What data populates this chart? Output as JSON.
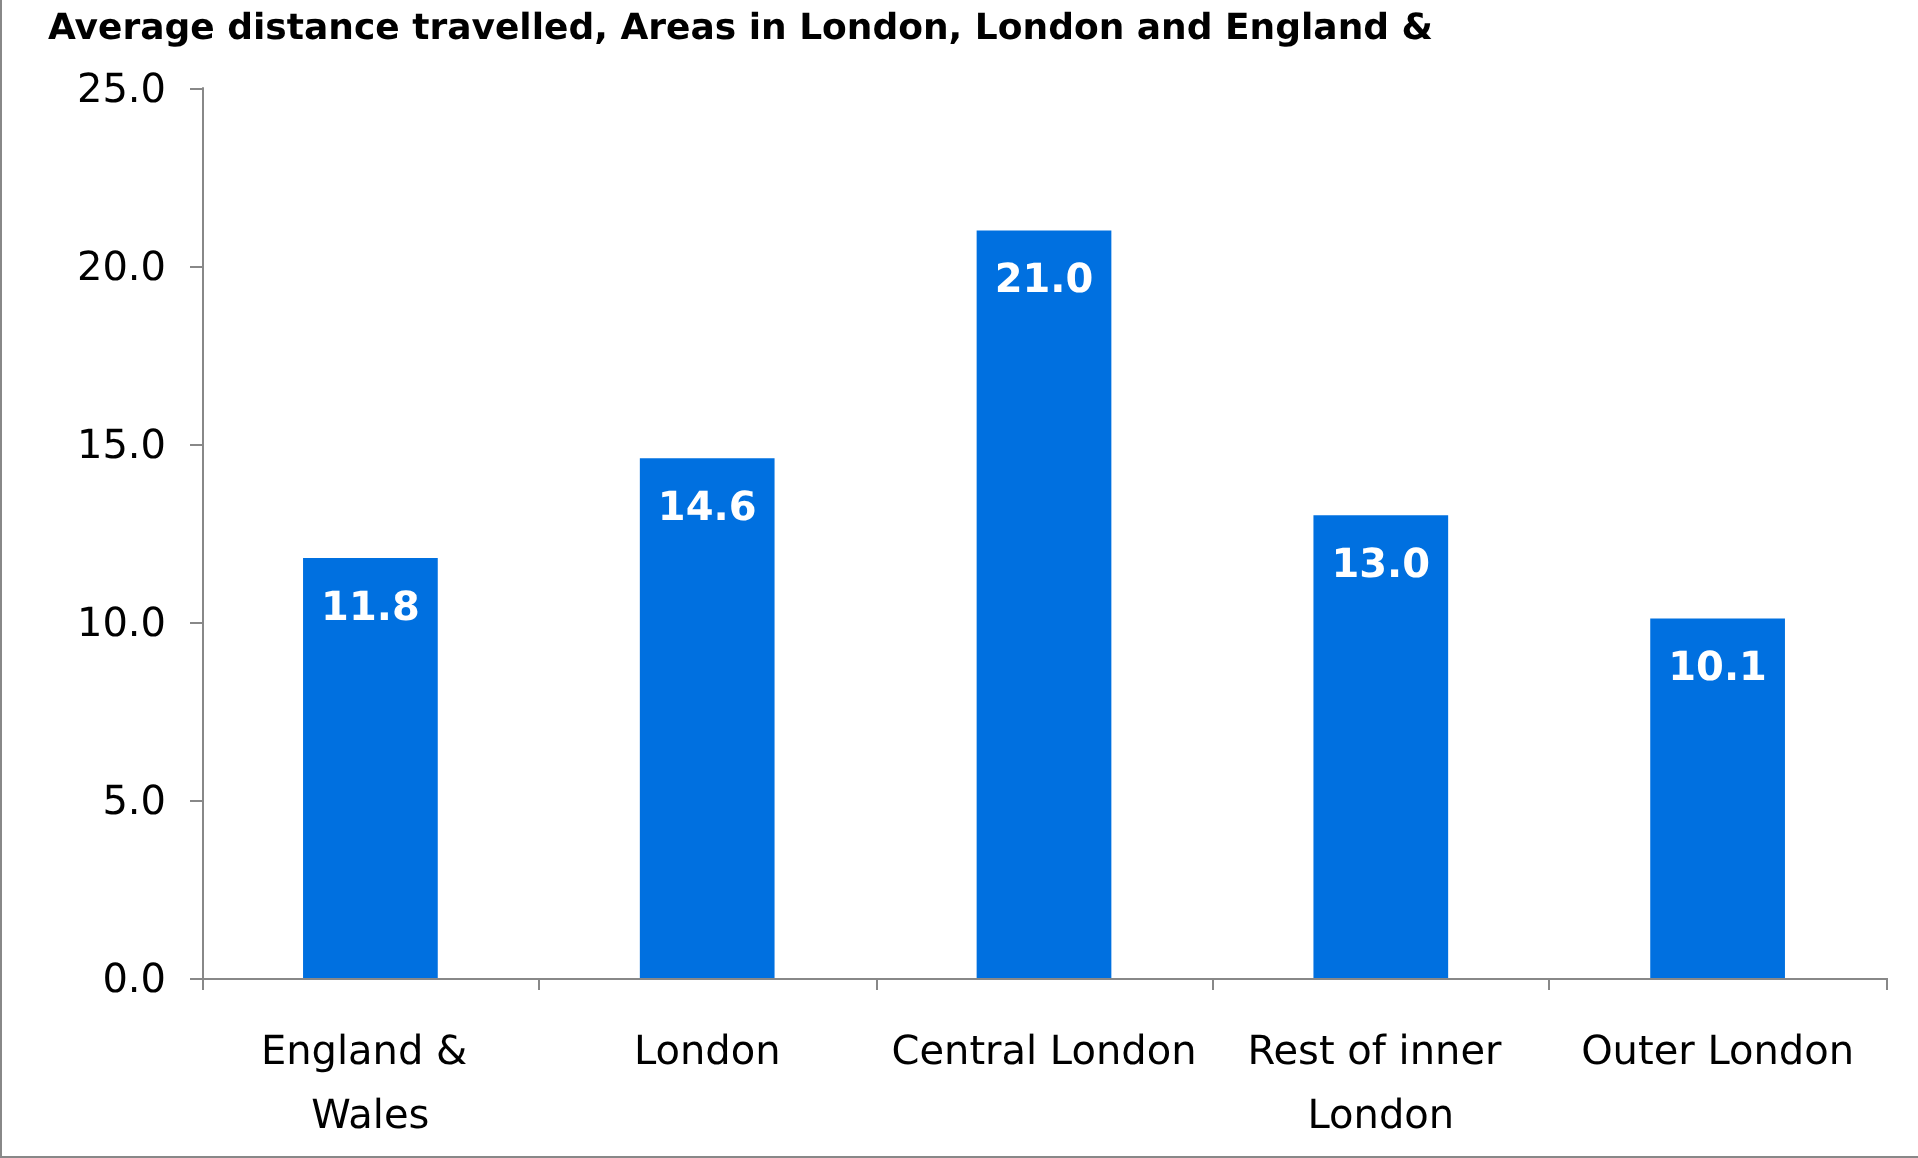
{
  "chart_data": {
    "type": "bar",
    "title": "Average distance travelled, Areas in London, London and England &",
    "categories": [
      "England & Wales",
      "London",
      "Central London",
      "Rest of inner London",
      "Outer London"
    ],
    "values": [
      11.8,
      14.6,
      21.0,
      13.0,
      10.1
    ],
    "value_labels": [
      "11.8",
      "14.6",
      "21.0",
      "13.0",
      "10.1"
    ],
    "color": "#0070e0",
    "ylim": [
      0,
      25
    ],
    "yticks": [
      {
        "value": 0,
        "label": "0.0"
      },
      {
        "value": 5,
        "label": "5.0"
      },
      {
        "value": 10,
        "label": "10.0"
      },
      {
        "value": 15,
        "label": "15.0"
      },
      {
        "value": 20,
        "label": "20.0"
      },
      {
        "value": 25,
        "label": "25.0"
      }
    ],
    "grid": false
  }
}
